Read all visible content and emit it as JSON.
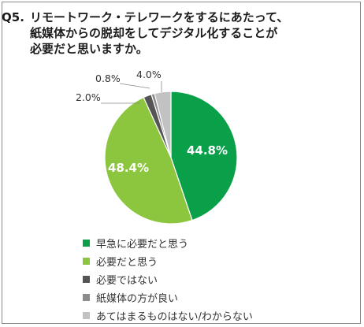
{
  "title": {
    "qnum": "Q5.",
    "lines": [
      "リモートワーク・テレワークをするにあたって、",
      "紙媒体からの脱却をしてデジタル化することが",
      "必要だと思いますか。"
    ]
  },
  "chart_data": {
    "type": "pie",
    "categories": [
      "早急に必要だと思う",
      "必要だと思う",
      "必要ではない",
      "紙媒体の方が良い",
      "あてはまるものはない/わからない"
    ],
    "values": [
      44.8,
      48.4,
      2.0,
      0.8,
      4.0
    ],
    "labels": [
      "44.8%",
      "48.4%",
      "2.0%",
      "0.8%",
      "4.0%"
    ],
    "colors": [
      "#0aa04a",
      "#8cc63f",
      "#555555",
      "#8c8c8c",
      "#c2c2c2"
    ],
    "start": "12 o'clock, clockwise",
    "legend_position": "bottom-left"
  }
}
